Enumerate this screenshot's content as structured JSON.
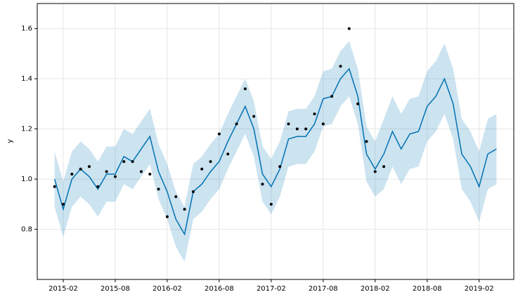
{
  "chart_data": {
    "type": "line",
    "ylabel": "y",
    "xlim": [
      "2014-11",
      "2019-06"
    ],
    "ylim": [
      0.6,
      1.7
    ],
    "xticks": [
      "2015-02",
      "2015-08",
      "2016-02",
      "2016-08",
      "2017-02",
      "2017-08",
      "2018-02",
      "2018-08",
      "2019-02"
    ],
    "yticks": [
      0.8,
      {
        "value": 1,
        "label": "1.0"
      },
      1.2,
      1.4,
      1.6
    ],
    "grid": true,
    "series": [
      {
        "type": "line",
        "color": "#0072B2",
        "x": [
          "2015-01",
          "2015-02",
          "2015-03",
          "2015-04",
          "2015-05",
          "2015-06",
          "2015-07",
          "2015-08",
          "2015-09",
          "2015-10",
          "2015-11",
          "2015-12",
          "2016-01",
          "2016-02",
          "2016-03",
          "2016-04",
          "2016-05",
          "2016-06",
          "2016-07",
          "2016-08",
          "2016-09",
          "2016-10",
          "2016-11",
          "2016-12",
          "2017-01",
          "2017-02",
          "2017-03",
          "2017-04",
          "2017-05",
          "2017-06",
          "2017-07",
          "2017-08",
          "2017-09",
          "2017-10",
          "2017-11",
          "2017-12",
          "2018-01",
          "2018-02",
          "2018-03",
          "2018-04",
          "2018-05",
          "2018-06",
          "2018-07",
          "2018-08",
          "2018-09",
          "2018-10",
          "2018-11",
          "2018-12",
          "2019-01",
          "2019-02",
          "2019-03",
          "2019-04"
        ],
        "values": [
          1.0,
          0.88,
          1.0,
          1.04,
          1.01,
          0.96,
          1.02,
          1.02,
          1.09,
          1.07,
          1.12,
          1.17,
          1.03,
          0.95,
          0.84,
          0.78,
          0.95,
          0.98,
          1.03,
          1.07,
          1.15,
          1.22,
          1.29,
          1.2,
          1.02,
          0.97,
          1.04,
          1.16,
          1.17,
          1.17,
          1.22,
          1.32,
          1.33,
          1.4,
          1.44,
          1.33,
          1.1,
          1.04,
          1.1,
          1.19,
          1.12,
          1.18,
          1.19,
          1.29,
          1.33,
          1.4,
          1.3,
          1.1,
          1.05,
          0.97,
          1.1,
          1.12
        ],
        "lower": [
          0.89,
          0.77,
          0.89,
          0.93,
          0.9,
          0.85,
          0.91,
          0.91,
          0.98,
          0.96,
          1.01,
          1.06,
          0.92,
          0.84,
          0.73,
          0.67,
          0.84,
          0.87,
          0.92,
          0.96,
          1.04,
          1.11,
          1.18,
          1.09,
          0.91,
          0.86,
          0.93,
          1.05,
          1.06,
          1.06,
          1.11,
          1.21,
          1.22,
          1.29,
          1.33,
          1.22,
          0.99,
          0.93,
          0.96,
          1.05,
          0.98,
          1.04,
          1.05,
          1.15,
          1.19,
          1.26,
          1.16,
          0.96,
          0.91,
          0.83,
          0.96,
          0.98
        ],
        "upper": [
          1.11,
          0.99,
          1.11,
          1.15,
          1.12,
          1.07,
          1.13,
          1.13,
          1.2,
          1.18,
          1.23,
          1.28,
          1.14,
          1.06,
          0.95,
          0.89,
          1.06,
          1.09,
          1.14,
          1.18,
          1.26,
          1.33,
          1.4,
          1.31,
          1.13,
          1.08,
          1.15,
          1.27,
          1.28,
          1.28,
          1.33,
          1.43,
          1.44,
          1.51,
          1.55,
          1.44,
          1.21,
          1.15,
          1.24,
          1.33,
          1.26,
          1.32,
          1.33,
          1.43,
          1.47,
          1.54,
          1.44,
          1.24,
          1.19,
          1.11,
          1.24,
          1.26
        ]
      },
      {
        "type": "scatter",
        "color": "#000000",
        "x": [
          "2015-01",
          "2015-02",
          "2015-03",
          "2015-04",
          "2015-05",
          "2015-06",
          "2015-07",
          "2015-08",
          "2015-09",
          "2015-10",
          "2015-11",
          "2015-12",
          "2016-01",
          "2016-02",
          "2016-03",
          "2016-04",
          "2016-05",
          "2016-06",
          "2016-07",
          "2016-08",
          "2016-09",
          "2016-10",
          "2016-11",
          "2016-12",
          "2017-01",
          "2017-02",
          "2017-03",
          "2017-04",
          "2017-05",
          "2017-06",
          "2017-07",
          "2017-08",
          "2017-09",
          "2017-10",
          "2017-11",
          "2017-12",
          "2018-01",
          "2018-02",
          "2018-03"
        ],
        "values": [
          0.97,
          0.9,
          1.02,
          1.04,
          1.05,
          0.97,
          1.03,
          1.01,
          1.07,
          1.07,
          1.03,
          1.02,
          0.96,
          0.85,
          0.93,
          0.88,
          0.95,
          1.04,
          1.07,
          1.18,
          1.1,
          1.22,
          1.36,
          1.25,
          0.98,
          0.9,
          1.05,
          1.22,
          1.2,
          1.2,
          1.26,
          1.22,
          1.33,
          1.45,
          1.6,
          1.3,
          1.15,
          1.03,
          1.05
        ]
      }
    ]
  }
}
